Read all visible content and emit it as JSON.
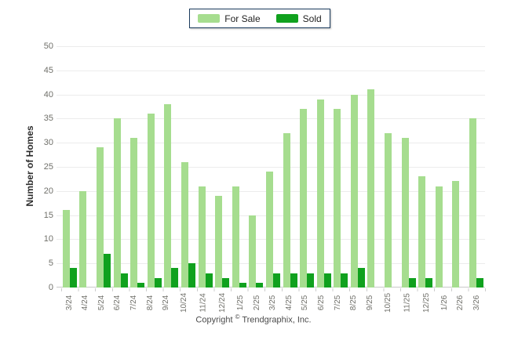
{
  "legend": {
    "items": [
      {
        "label": "For Sale",
        "color": "#a6dd8f"
      },
      {
        "label": "Sold",
        "color": "#10a11e"
      }
    ],
    "border_color": "#1c3c5e"
  },
  "chart_data": {
    "type": "bar",
    "title": "",
    "xlabel": "",
    "ylabel": "Number of Homes",
    "ylim": [
      0,
      50
    ],
    "ytick_step": 5,
    "grid": true,
    "legend_position": "top-center",
    "categories": [
      "3/24",
      "4/24",
      "5/24",
      "6/24",
      "7/24",
      "8/24",
      "9/24",
      "10/24",
      "11/24",
      "12/24",
      "1/25",
      "2/25",
      "3/25",
      "4/25",
      "5/25",
      "6/25",
      "7/25",
      "8/25",
      "9/25",
      "10/25",
      "11/25",
      "12/25",
      "1/26",
      "2/26",
      "3/26"
    ],
    "series": [
      {
        "name": "For Sale",
        "color": "#a6dd8f",
        "values": [
          16,
          20,
          29,
          35,
          31,
          36,
          38,
          26,
          21,
          19,
          21,
          15,
          24,
          32,
          37,
          39,
          37,
          40,
          41,
          32,
          31,
          23,
          21,
          22,
          35
        ]
      },
      {
        "name": "Sold",
        "color": "#10a11e",
        "values": [
          4,
          0,
          7,
          3,
          1,
          2,
          4,
          5,
          3,
          2,
          1,
          1,
          3,
          3,
          3,
          3,
          3,
          4,
          0,
          0,
          2,
          2,
          0,
          0,
          2
        ]
      }
    ]
  },
  "footer": {
    "prefix": "Copyright",
    "symbol": "©",
    "company": "Trendgraphix, Inc."
  }
}
